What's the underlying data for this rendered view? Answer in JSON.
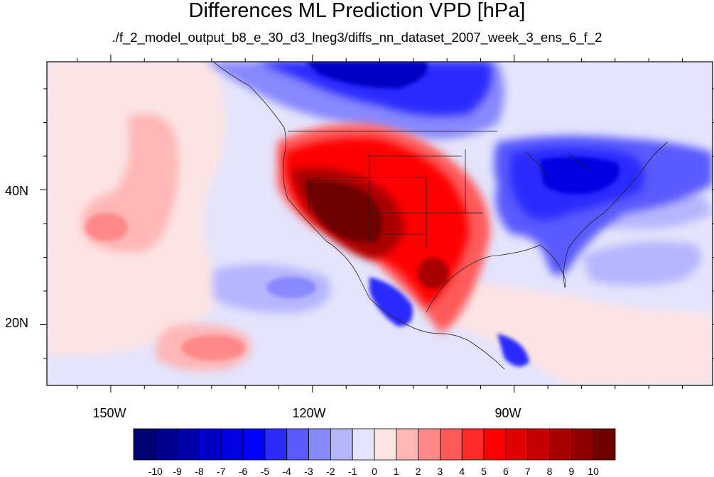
{
  "title": "Differences ML Prediction VPD [hPa]",
  "subtitle": "./f_2_model_output_b8_e_30_d3_lneg3/diffs_nn_dataset_2007_week_3_ens_6_f_2",
  "axes": {
    "lon_labels": [
      "150W",
      "120W",
      "90W"
    ],
    "lon_values": [
      -150,
      -120,
      -90
    ],
    "lat_labels": [
      "40N",
      "20N"
    ],
    "lat_values": [
      40,
      20
    ],
    "lon_range": [
      -159.5,
      -60.5
    ],
    "lat_range": [
      11,
      59
    ]
  },
  "colorbar": {
    "labels": [
      "-10",
      "-9",
      "-8",
      "-7",
      "-6",
      "-5",
      "-4",
      "-3",
      "-2",
      "-1",
      "0",
      "1",
      "2",
      "3",
      "4",
      "5",
      "6",
      "7",
      "8",
      "9",
      "10"
    ],
    "colors": [
      "#00006e",
      "#00008c",
      "#0000a8",
      "#0000c4",
      "#0000e0",
      "#0000ff",
      "#2b2bff",
      "#5a5aff",
      "#8888ff",
      "#b6b6ff",
      "#e4e4fc",
      "#fde4e4",
      "#ffb6b6",
      "#ff8888",
      "#ff5a5a",
      "#ff2b2b",
      "#ff0000",
      "#e00000",
      "#c40000",
      "#a80000",
      "#8c0000",
      "#6e0000"
    ]
  }
}
